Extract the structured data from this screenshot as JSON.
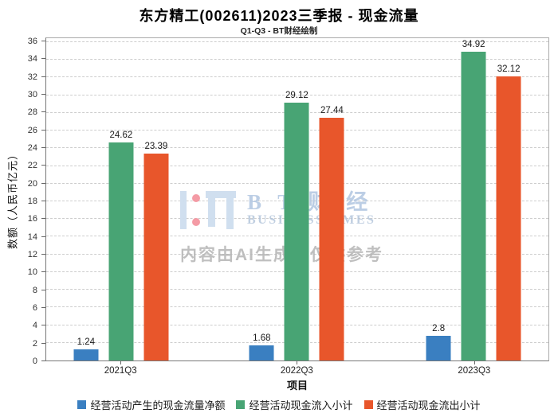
{
  "title": "东方精工(002611)2023三季报 - 现金流量",
  "subtitle": "Q1-Q3 - BT财经绘制",
  "watermark": {
    "brand_cn": "B T 财 经",
    "brand_en": "BUSINESSTIMES",
    "disclaimer": "内容由AI生成，仅供参考"
  },
  "chart_data": {
    "type": "bar",
    "title": "东方精工(002611)2023三季报 - 现金流量",
    "subtitle": "Q1-Q3 - BT财经绘制",
    "categories": [
      "2021Q3",
      "2022Q3",
      "2023Q3"
    ],
    "series": [
      {
        "name": "经营活动产生的现金流量净额",
        "color": "#3a7fc1",
        "values": [
          1.24,
          1.68,
          2.8
        ]
      },
      {
        "name": "经营活动现金流入小计",
        "color": "#48a474",
        "values": [
          24.62,
          29.12,
          34.92
        ]
      },
      {
        "name": "经营活动现金流出小计",
        "color": "#e8562b",
        "values": [
          23.39,
          27.44,
          32.12
        ]
      }
    ],
    "xlabel": "项目",
    "ylabel": "数额（人民币亿元）",
    "ylim": [
      0,
      36
    ],
    "ytick_step": 2,
    "grid": "horizontal-dashed",
    "legend_position": "bottom",
    "bar_value_labels": true
  }
}
